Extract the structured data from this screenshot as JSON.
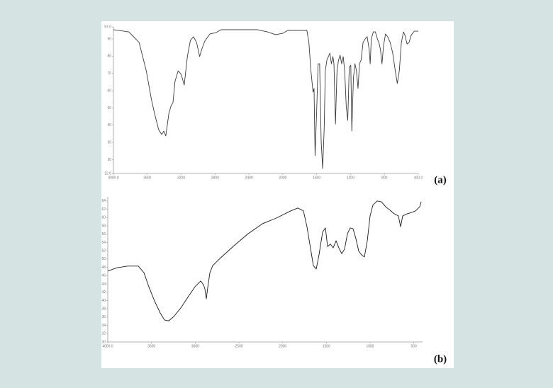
{
  "chart_data": [
    {
      "type": "line",
      "annotation": "(a)",
      "x": [
        4000,
        3818,
        3697,
        3612,
        3552,
        3515,
        3467,
        3430,
        3406,
        3382,
        3345,
        3321,
        3297,
        3273,
        3236,
        3200,
        3164,
        3127,
        3091,
        3055,
        3018,
        2982,
        2958,
        2921,
        2861,
        2788,
        2727,
        2424,
        2303,
        2182,
        2085,
        2000,
        1940,
        1789,
        1716,
        1692,
        1668,
        1643,
        1631,
        1619,
        1601,
        1583,
        1565,
        1547,
        1529,
        1511,
        1498,
        1480,
        1462,
        1444,
        1426,
        1408,
        1396,
        1378,
        1360,
        1342,
        1323,
        1305,
        1287,
        1269,
        1251,
        1233,
        1215,
        1197,
        1185,
        1166,
        1148,
        1130,
        1112,
        1094,
        1076,
        1052,
        1028,
        1004,
        980,
        968,
        955,
        931,
        907,
        883,
        865,
        847,
        829,
        811,
        787,
        762,
        732,
        702,
        672,
        648,
        624,
        600,
        575,
        557,
        533,
        509,
        485,
        449,
        400
      ],
      "series": [
        {
          "color": "#3a3a3a",
          "values": [
            95.4,
            94.1,
            88.0,
            71.5,
            55.1,
            46.9,
            37.5,
            34.6,
            36.6,
            33.8,
            46.9,
            51.0,
            53.1,
            65.4,
            71.5,
            69.5,
            63.3,
            79.8,
            89.2,
            91.3,
            88.0,
            79.8,
            83.9,
            88.8,
            92.9,
            93.7,
            95.4,
            95.4,
            95.4,
            94.1,
            92.5,
            93.3,
            95.0,
            95.0,
            95.0,
            88.0,
            71.5,
            59.2,
            61.3,
            22.3,
            46.9,
            75.6,
            75.6,
            30.5,
            14.9,
            38.7,
            71.5,
            77.7,
            79.8,
            81.8,
            75.6,
            79.8,
            75.6,
            40.7,
            71.5,
            77.7,
            80.6,
            75.6,
            79.8,
            71.5,
            51.0,
            42.8,
            73.6,
            74.8,
            36.6,
            67.4,
            75.6,
            71.5,
            61.3,
            75.6,
            77.7,
            88.0,
            90.0,
            91.3,
            83.9,
            75.6,
            90.0,
            94.1,
            94.1,
            90.0,
            88.0,
            83.9,
            75.6,
            85.9,
            92.9,
            91.3,
            88.0,
            81.8,
            71.5,
            64.2,
            71.5,
            88.0,
            94.1,
            92.1,
            87.1,
            88.0,
            92.1,
            94.5,
            94.5
          ]
        }
      ],
      "xlim": [
        4000,
        400
      ],
      "xticks": [
        {
          "value": 4000,
          "label": "4000.0"
        },
        3600,
        3200,
        2800,
        2400,
        2000,
        1600,
        1200,
        800,
        {
          "value": 400,
          "label": "400.0"
        }
      ],
      "ylim": [
        12,
        97
      ],
      "yticks": [
        {
          "value": 12,
          "label": "12.0"
        },
        20,
        30,
        40,
        50,
        60,
        70,
        80,
        90,
        {
          "value": 97,
          "label": "97.0"
        }
      ]
    },
    {
      "type": "line",
      "annotation": "(b)",
      "x": [
        4000,
        3895,
        3773,
        3651,
        3586,
        3530,
        3465,
        3400,
        3351,
        3303,
        3246,
        3165,
        3084,
        3003,
        2938,
        2905,
        2889,
        2873,
        2857,
        2832,
        2800,
        2719,
        2557,
        2395,
        2232,
        2070,
        1908,
        1827,
        1762,
        1722,
        1689,
        1649,
        1616,
        1584,
        1543,
        1511,
        1486,
        1454,
        1422,
        1389,
        1357,
        1324,
        1292,
        1259,
        1227,
        1195,
        1162,
        1130,
        1097,
        1065,
        1032,
        1000,
        968,
        919,
        870,
        822,
        773,
        724,
        676,
        651,
        627,
        578,
        530,
        481,
        432,
        416
      ],
      "series": [
        {
          "color": "#1a1a1a",
          "values": [
            47.1,
            47.9,
            48.3,
            48.3,
            46.7,
            43.3,
            39.9,
            37.0,
            35.3,
            35.1,
            36.1,
            38.2,
            40.8,
            43.3,
            44.7,
            43.8,
            42.8,
            40.4,
            43.1,
            46.7,
            48.4,
            50.1,
            53.2,
            56.1,
            58.5,
            59.9,
            61.6,
            62.3,
            61.6,
            57.8,
            53.6,
            48.4,
            47.6,
            51.0,
            56.5,
            57.5,
            53.0,
            53.6,
            52.7,
            54.4,
            52.7,
            51.3,
            52.4,
            56.1,
            57.5,
            57.3,
            54.9,
            51.9,
            51.0,
            50.5,
            54.4,
            60.4,
            63.0,
            64.0,
            63.8,
            62.6,
            61.8,
            60.9,
            60.4,
            57.8,
            60.4,
            60.9,
            61.2,
            61.6,
            62.6,
            63.8
          ]
        }
      ],
      "xlim": [
        4000,
        400
      ],
      "xticks": [
        {
          "value": 4000,
          "label": "4000.0"
        },
        3500,
        3000,
        2500,
        2000,
        1500,
        1000,
        500
      ],
      "ylim": [
        30,
        65
      ],
      "yticks": [
        30,
        32,
        34,
        36,
        38,
        40,
        42,
        44,
        46,
        48,
        50,
        52,
        54,
        56,
        58,
        60,
        62,
        64
      ]
    }
  ]
}
